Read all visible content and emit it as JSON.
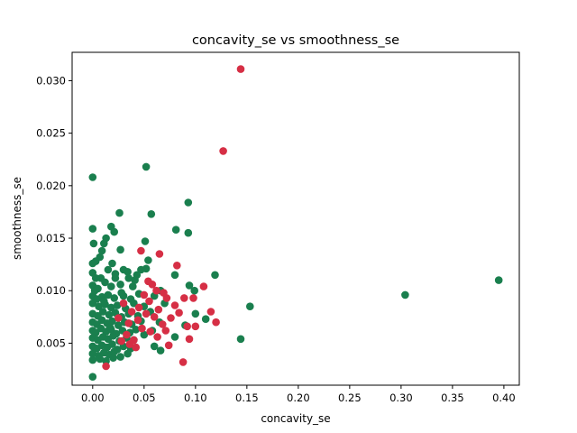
{
  "chart_data": {
    "type": "scatter",
    "title": "concavity_se vs smoothness_se",
    "xlabel": "concavity_se",
    "ylabel": "smoothness_se",
    "xlim": [
      -0.02,
      0.415
    ],
    "ylim": [
      0.001,
      0.0327
    ],
    "xticks": [
      0.0,
      0.05,
      0.1,
      0.15,
      0.2,
      0.25,
      0.3,
      0.35,
      0.4
    ],
    "xtick_labels": [
      "0.00",
      "0.05",
      "0.10",
      "0.15",
      "0.20",
      "0.25",
      "0.30",
      "0.35",
      "0.40"
    ],
    "yticks": [
      0.005,
      0.01,
      0.015,
      0.02,
      0.025,
      0.03
    ],
    "ytick_labels": [
      "0.005",
      "0.010",
      "0.015",
      "0.020",
      "0.025",
      "0.030"
    ],
    "grid": false,
    "legend": "none",
    "series": [
      {
        "color": "#1a7f4e",
        "points": [
          [
            0.0,
            0.0208
          ],
          [
            0.052,
            0.0218
          ],
          [
            0.026,
            0.0174
          ],
          [
            0.057,
            0.0173
          ],
          [
            0.093,
            0.0184
          ],
          [
            0.0,
            0.0159
          ],
          [
            0.018,
            0.0161
          ],
          [
            0.021,
            0.0156
          ],
          [
            0.081,
            0.0158
          ],
          [
            0.093,
            0.0155
          ],
          [
            0.013,
            0.015
          ],
          [
            0.011,
            0.0145
          ],
          [
            0.001,
            0.0145
          ],
          [
            0.051,
            0.0147
          ],
          [
            0.027,
            0.0139
          ],
          [
            0.009,
            0.0138
          ],
          [
            0.007,
            0.0132
          ],
          [
            0.003,
            0.0128
          ],
          [
            0.0,
            0.0126
          ],
          [
            0.019,
            0.0126
          ],
          [
            0.054,
            0.0129
          ],
          [
            0.015,
            0.012
          ],
          [
            0.03,
            0.012
          ],
          [
            0.047,
            0.012
          ],
          [
            0.052,
            0.0121
          ],
          [
            0.0,
            0.0117
          ],
          [
            0.022,
            0.0116
          ],
          [
            0.034,
            0.0118
          ],
          [
            0.008,
            0.0112
          ],
          [
            0.041,
            0.011
          ],
          [
            0.08,
            0.0115
          ],
          [
            0.119,
            0.0115
          ],
          [
            0.094,
            0.0105
          ],
          [
            0.099,
            0.01
          ],
          [
            0.066,
            0.01
          ],
          [
            0.153,
            0.0085
          ],
          [
            0.0,
            0.0105
          ],
          [
            0.002,
            0.01
          ],
          [
            0.005,
            0.0102
          ],
          [
            0.012,
            0.0108
          ],
          [
            0.018,
            0.0104
          ],
          [
            0.027,
            0.0106
          ],
          [
            0.039,
            0.0104
          ],
          [
            0.0,
            0.0095
          ],
          [
            0.004,
            0.0092
          ],
          [
            0.009,
            0.0094
          ],
          [
            0.015,
            0.0096
          ],
          [
            0.021,
            0.0093
          ],
          [
            0.03,
            0.0095
          ],
          [
            0.037,
            0.0092
          ],
          [
            0.045,
            0.0097
          ],
          [
            0.0,
            0.0088
          ],
          [
            0.006,
            0.0085
          ],
          [
            0.012,
            0.0087
          ],
          [
            0.018,
            0.0084
          ],
          [
            0.024,
            0.0086
          ],
          [
            0.032,
            0.0083
          ],
          [
            0.04,
            0.0088
          ],
          [
            0.05,
            0.0085
          ],
          [
            0.0,
            0.0078
          ],
          [
            0.005,
            0.0076
          ],
          [
            0.01,
            0.008
          ],
          [
            0.016,
            0.0077
          ],
          [
            0.022,
            0.0079
          ],
          [
            0.028,
            0.0075
          ],
          [
            0.035,
            0.0078
          ],
          [
            0.044,
            0.0076
          ],
          [
            0.056,
            0.008
          ],
          [
            0.0,
            0.007
          ],
          [
            0.004,
            0.0068
          ],
          [
            0.009,
            0.0072
          ],
          [
            0.014,
            0.0069
          ],
          [
            0.019,
            0.0071
          ],
          [
            0.025,
            0.0067
          ],
          [
            0.031,
            0.007
          ],
          [
            0.038,
            0.0068
          ],
          [
            0.047,
            0.0071
          ],
          [
            0.0,
            0.0062
          ],
          [
            0.003,
            0.006
          ],
          [
            0.008,
            0.0064
          ],
          [
            0.013,
            0.0061
          ],
          [
            0.018,
            0.0063
          ],
          [
            0.023,
            0.0059
          ],
          [
            0.029,
            0.0062
          ],
          [
            0.036,
            0.006
          ],
          [
            0.042,
            0.0063
          ],
          [
            0.0,
            0.0055
          ],
          [
            0.005,
            0.0053
          ],
          [
            0.01,
            0.0056
          ],
          [
            0.015,
            0.0054
          ],
          [
            0.02,
            0.0057
          ],
          [
            0.026,
            0.0052
          ],
          [
            0.033,
            0.0055
          ],
          [
            0.04,
            0.0053
          ],
          [
            0.0,
            0.0047
          ],
          [
            0.004,
            0.0045
          ],
          [
            0.009,
            0.0048
          ],
          [
            0.014,
            0.0046
          ],
          [
            0.019,
            0.0049
          ],
          [
            0.024,
            0.0044
          ],
          [
            0.03,
            0.0047
          ],
          [
            0.037,
            0.0045
          ],
          [
            0.0,
            0.004
          ],
          [
            0.006,
            0.0038
          ],
          [
            0.011,
            0.0041
          ],
          [
            0.016,
            0.0039
          ],
          [
            0.021,
            0.0042
          ],
          [
            0.027,
            0.0037
          ],
          [
            0.034,
            0.004
          ],
          [
            0.0,
            0.0034
          ],
          [
            0.007,
            0.0035
          ],
          [
            0.013,
            0.0033
          ],
          [
            0.02,
            0.0036
          ],
          [
            0.0,
            0.0018
          ],
          [
            0.06,
            0.0047
          ],
          [
            0.066,
            0.0043
          ],
          [
            0.08,
            0.0056
          ],
          [
            0.09,
            0.0067
          ],
          [
            0.1,
            0.0078
          ],
          [
            0.11,
            0.0073
          ],
          [
            0.144,
            0.0054
          ],
          [
            0.304,
            0.0096
          ],
          [
            0.395,
            0.011
          ],
          [
            0.06,
            0.0095
          ],
          [
            0.07,
            0.0088
          ],
          [
            0.043,
            0.0115
          ],
          [
            0.035,
            0.0112
          ],
          [
            0.065,
            0.007
          ],
          [
            0.058,
            0.0062
          ],
          [
            0.05,
            0.0058
          ],
          [
            0.017,
            0.0065
          ],
          [
            0.011,
            0.009
          ],
          [
            0.028,
            0.0098
          ],
          [
            0.022,
            0.0112
          ],
          [
            0.003,
            0.0112
          ]
        ]
      },
      {
        "color": "#d62f45",
        "points": [
          [
            0.144,
            0.0311
          ],
          [
            0.127,
            0.0233
          ],
          [
            0.047,
            0.0138
          ],
          [
            0.065,
            0.0135
          ],
          [
            0.082,
            0.0124
          ],
          [
            0.108,
            0.0104
          ],
          [
            0.054,
            0.0109
          ],
          [
            0.062,
            0.01
          ],
          [
            0.072,
            0.0093
          ],
          [
            0.089,
            0.0093
          ],
          [
            0.098,
            0.0093
          ],
          [
            0.08,
            0.0086
          ],
          [
            0.064,
            0.0082
          ],
          [
            0.055,
            0.009
          ],
          [
            0.045,
            0.0084
          ],
          [
            0.038,
            0.008
          ],
          [
            0.03,
            0.0088
          ],
          [
            0.025,
            0.0074
          ],
          [
            0.035,
            0.0069
          ],
          [
            0.044,
            0.0072
          ],
          [
            0.052,
            0.0078
          ],
          [
            0.06,
            0.0075
          ],
          [
            0.068,
            0.0068
          ],
          [
            0.076,
            0.0074
          ],
          [
            0.084,
            0.0079
          ],
          [
            0.092,
            0.0066
          ],
          [
            0.1,
            0.0066
          ],
          [
            0.115,
            0.008
          ],
          [
            0.12,
            0.007
          ],
          [
            0.074,
            0.0048
          ],
          [
            0.094,
            0.0054
          ],
          [
            0.088,
            0.0032
          ],
          [
            0.013,
            0.0028
          ],
          [
            0.04,
            0.0053
          ],
          [
            0.033,
            0.0058
          ],
          [
            0.048,
            0.0064
          ],
          [
            0.056,
            0.0061
          ],
          [
            0.063,
            0.0056
          ],
          [
            0.071,
            0.0062
          ],
          [
            0.058,
            0.0106
          ],
          [
            0.069,
            0.0098
          ],
          [
            0.05,
            0.0096
          ],
          [
            0.036,
            0.0049
          ],
          [
            0.042,
            0.0046
          ],
          [
            0.028,
            0.0052
          ]
        ]
      }
    ]
  }
}
